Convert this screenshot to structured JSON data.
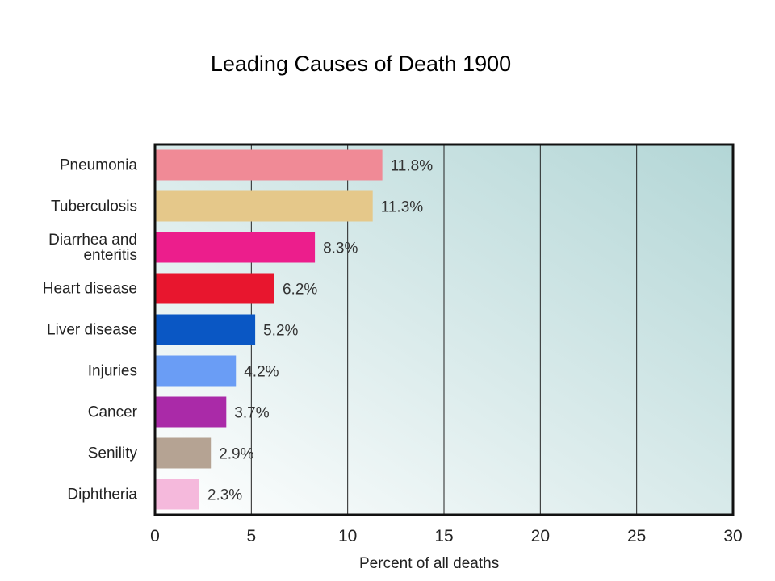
{
  "chart_data": {
    "type": "bar",
    "orientation": "horizontal",
    "title": "Leading Causes of Death 1900",
    "xlabel": "Percent of all deaths",
    "ylabel": "",
    "xlim": [
      0,
      30
    ],
    "xticks": [
      0,
      5,
      10,
      15,
      20,
      25,
      30
    ],
    "grid": "vertical",
    "categories": [
      [
        "Pneumonia"
      ],
      [
        "Tuberculosis"
      ],
      [
        "Diarrhea and",
        "enteritis"
      ],
      [
        "Heart disease"
      ],
      [
        "Liver disease"
      ],
      [
        "Injuries"
      ],
      [
        "Cancer"
      ],
      [
        "Senility"
      ],
      [
        "Diphtheria"
      ]
    ],
    "values": [
      11.8,
      11.3,
      8.3,
      6.2,
      5.2,
      4.2,
      3.7,
      2.9,
      2.3
    ],
    "value_labels": [
      "11.8%",
      "11.3%",
      "8.3%",
      "6.2%",
      "5.2%",
      "4.2%",
      "3.7%",
      "2.9%",
      "2.3%"
    ],
    "colors": [
      "#f08a96",
      "#e5c88a",
      "#ec1e8c",
      "#e8162e",
      "#0a57c4",
      "#6a9df5",
      "#aa2aa8",
      "#b5a393",
      "#f5b9dc"
    ]
  }
}
